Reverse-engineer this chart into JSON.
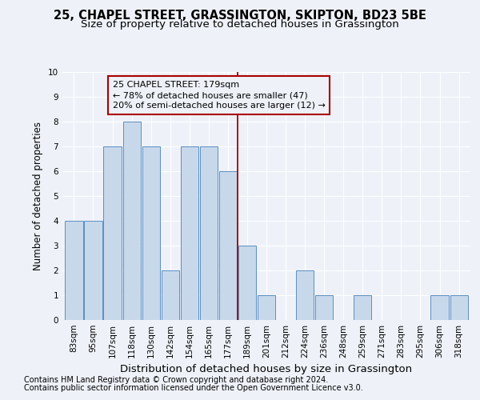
{
  "title1": "25, CHAPEL STREET, GRASSINGTON, SKIPTON, BD23 5BE",
  "title2": "Size of property relative to detached houses in Grassington",
  "xlabel": "Distribution of detached houses by size in Grassington",
  "ylabel": "Number of detached properties",
  "categories": [
    "83sqm",
    "95sqm",
    "107sqm",
    "118sqm",
    "130sqm",
    "142sqm",
    "154sqm",
    "165sqm",
    "177sqm",
    "189sqm",
    "201sqm",
    "212sqm",
    "224sqm",
    "236sqm",
    "248sqm",
    "259sqm",
    "271sqm",
    "283sqm",
    "295sqm",
    "306sqm",
    "318sqm"
  ],
  "values": [
    4,
    4,
    7,
    8,
    7,
    2,
    7,
    7,
    6,
    3,
    1,
    0,
    2,
    1,
    0,
    1,
    0,
    0,
    0,
    1,
    1
  ],
  "bar_color": "#c8d8eb",
  "bar_edge_color": "#5a8fc2",
  "vline_x": 8.5,
  "vline_color": "#aa0000",
  "annotation_line1": "25 CHAPEL STREET: 179sqm",
  "annotation_line2": "← 78% of detached houses are smaller (47)",
  "annotation_line3": "20% of semi-detached houses are larger (12) →",
  "annotation_box_color": "#aa0000",
  "ylim": [
    0,
    10
  ],
  "yticks": [
    0,
    1,
    2,
    3,
    4,
    5,
    6,
    7,
    8,
    9,
    10
  ],
  "footnote1": "Contains HM Land Registry data © Crown copyright and database right 2024.",
  "footnote2": "Contains public sector information licensed under the Open Government Licence v3.0.",
  "bg_color": "#eef2f8",
  "grid_color": "#ffffff",
  "title1_fontsize": 10.5,
  "title2_fontsize": 9.5,
  "xlabel_fontsize": 9.5,
  "ylabel_fontsize": 8.5,
  "tick_fontsize": 7.5,
  "annot_fontsize": 8.0,
  "footnote_fontsize": 7.0
}
